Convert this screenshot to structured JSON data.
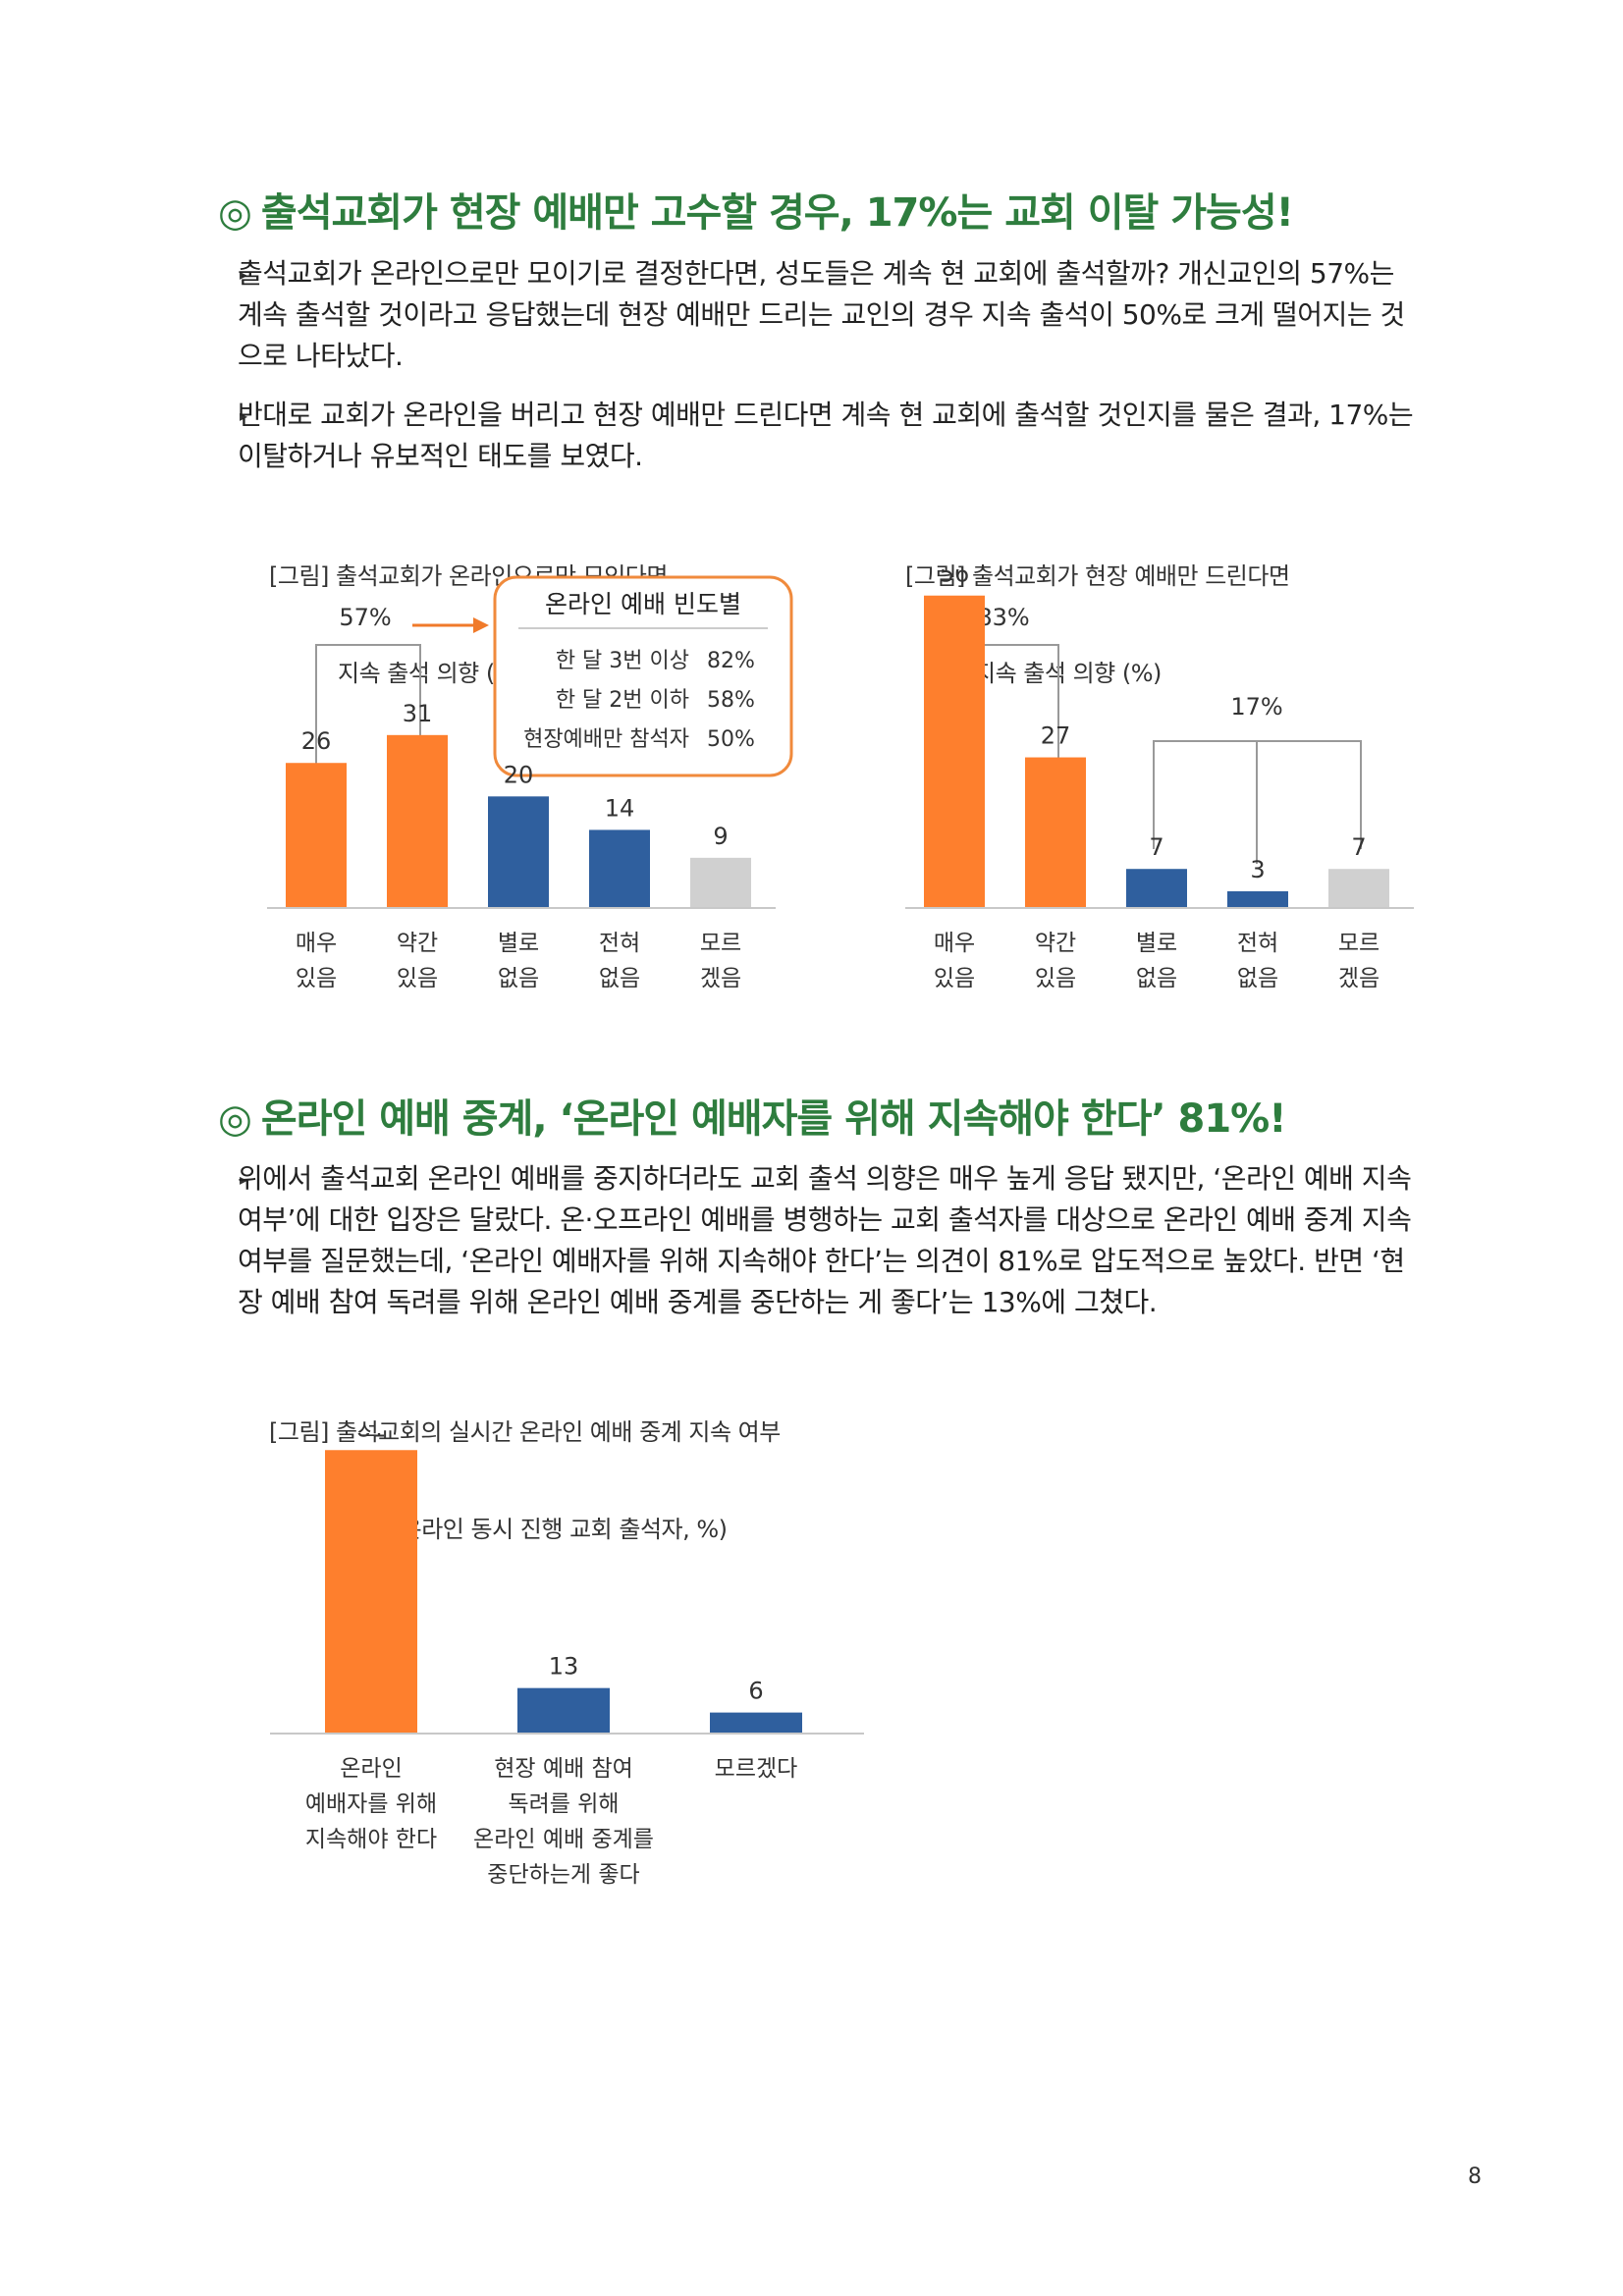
{
  "section1": {
    "marker": "◎",
    "title": "출석교회가 현장 예배만 고수할 경우, 17%는 교회 이탈 가능성!",
    "bullets": [
      {
        "marker": "▸",
        "lines": [
          "출석교회가 온라인으로만 모이기로 결정한다면, 성도들은 계속 현 교회에 출석할까? 개신교인의 57%는",
          "계속 출석할 것이라고 응답했는데 현장 예배만 드리는 교인의 경우 지속 출석이 50%로 크게 떨어지는 것",
          "으로 나타났다."
        ]
      },
      {
        "marker": "▸",
        "lines": [
          "반대로 교회가 온라인을 버리고 현장 예배만 드린다면 계속 현 교회에 출석할 것인지를 물은 결과, 17%는",
          "이탈하거나 유보적인 태도를 보였다."
        ]
      }
    ]
  },
  "figure1": {
    "caption_line1": "[그림] 출석교회가 온라인으로만 모인다면",
    "caption_line2": "지속 출석 의향 (%)",
    "bracket_label": "57%",
    "callout": {
      "title": "온라인 예배 빈도별",
      "rows": [
        {
          "label": "한 달 3번 이상",
          "value": "82%"
        },
        {
          "label": "한 달 2번 이하",
          "value": "58%"
        },
        {
          "label": "현장예배만 참석자",
          "value": "50%"
        }
      ]
    }
  },
  "figure2": {
    "caption_line1": "[그림] 출석교회가 현장 예배만 드린다면",
    "caption_line2": "지속 출석 의향 (%)",
    "bracket_label_left": "83%",
    "bracket_label_right": "17%"
  },
  "section2": {
    "marker": "◎",
    "title": "온라인 예배 중계, ‘온라인 예배자를 위해 지속해야 한다’ 81%!",
    "bullets": [
      {
        "marker": "▸",
        "lines": [
          "위에서 출석교회 온라인 예배를 중지하더라도 교회 출석 의향은 매우 높게 응답 됐지만, ‘온라인 예배 지속",
          "여부’에 대한 입장은 달랐다. 온·오프라인 예배를 병행하는 교회 출석자를 대상으로 온라인 예배 중계 지속",
          "여부를 질문했는데, ‘온라인 예배자를 위해 지속해야 한다’는 의견이 81%로 압도적으로 높았다. 반면 ‘현",
          "장 예배 참여 독려를 위해 온라인 예배 중계를 중단하는 게 좋다’는 13%에 그쳤다."
        ]
      }
    ]
  },
  "figure3": {
    "caption_line1": "[그림] 출석교회의 실시간 온라인 예배 중계 지속 여부",
    "caption_line2": "(현장+온라인 동시 진행 교회 출석자, %)"
  },
  "colors": {
    "heading": "#2e7d3e",
    "orange": "#fe7f2d",
    "blue": "#2f5f9e",
    "gray": "#d0d0d0",
    "callout_border": "#f08a3c"
  },
  "chart_data": [
    {
      "type": "bar",
      "title": "[그림] 출석교회가 온라인으로만 모인다면 지속 출석 의향 (%)",
      "categories": [
        [
          "매우",
          "있음"
        ],
        [
          "약간",
          "있음"
        ],
        [
          "별로",
          "없음"
        ],
        [
          "전혀",
          "없음"
        ],
        [
          "모르",
          "겠음"
        ]
      ],
      "values": [
        26,
        31,
        20,
        14,
        9
      ],
      "bar_colors": [
        "#fe7f2d",
        "#fe7f2d",
        "#2f5f9e",
        "#2f5f9e",
        "#d0d0d0"
      ],
      "ylim": [
        0,
        60
      ]
    },
    {
      "type": "bar",
      "title": "[그림] 출석교회가 현장 예배만 드린다면 지속 출석 의향 (%)",
      "categories": [
        [
          "매우",
          "있음"
        ],
        [
          "약간",
          "있음"
        ],
        [
          "별로",
          "없음"
        ],
        [
          "전혀",
          "없음"
        ],
        [
          "모르",
          "겠음"
        ]
      ],
      "values": [
        56,
        27,
        7,
        3,
        7
      ],
      "bar_colors": [
        "#fe7f2d",
        "#fe7f2d",
        "#2f5f9e",
        "#2f5f9e",
        "#d0d0d0"
      ],
      "ylim": [
        0,
        60
      ]
    },
    {
      "type": "bar",
      "title": "[그림] 출석교회의 실시간 온라인 예배 중계 지속 여부 (현장+온라인 동시 진행 교회 출석자, %)",
      "categories": [
        [
          "온라인",
          "예배자를 위해",
          "지속해야 한다"
        ],
        [
          "현장 예배 참여",
          "독려를 위해",
          "온라인 예배 중계를",
          "중단하는게 좋다"
        ],
        [
          "모르겠다"
        ]
      ],
      "values": [
        81,
        13,
        6
      ],
      "bar_colors": [
        "#fe7f2d",
        "#2f5f9e",
        "#2f5f9e"
      ],
      "ylim": [
        0,
        85
      ]
    }
  ],
  "page_number": "8"
}
